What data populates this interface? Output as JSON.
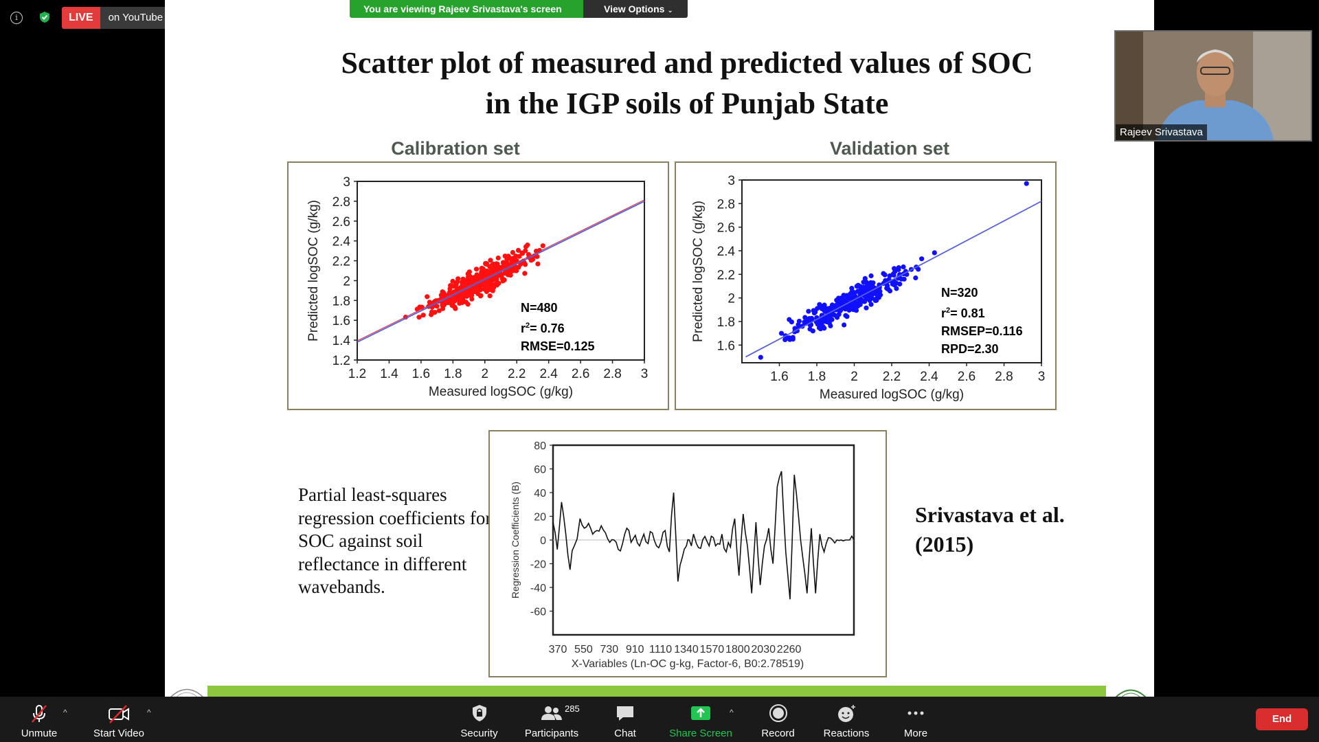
{
  "meeting": {
    "live_label": "LIVE",
    "stream_target": "on YouTube",
    "share_banner": "You are viewing Rajeev Srivastava's screen",
    "view_options": "View Options"
  },
  "slide": {
    "title_line1": "Scatter plot of measured and predicted values of SOC",
    "title_line2": "in the IGP soils of Punjab State",
    "description": "Partial least-squares regression coefficients for SOC against soil reflectance in different wavebands.",
    "citation_line1": "Srivastava et al.",
    "citation_line2": "(2015)"
  },
  "chart_data": [
    {
      "type": "scatter",
      "title": "Calibration set",
      "xlabel": "Measured logSOC (g/kg)",
      "ylabel": "Predicted logSOC (g/kg)",
      "xlim": [
        1.2,
        3.0
      ],
      "ylim": [
        1.2,
        3.0
      ],
      "xticks": [
        "1.2",
        "1.4",
        "1.6",
        "1.8",
        "2",
        "2.2",
        "2.4",
        "2.6",
        "2.8",
        "3"
      ],
      "yticks": [
        "1.2",
        "1.4",
        "1.6",
        "1.8",
        "2",
        "2.2",
        "2.4",
        "2.6",
        "2.8",
        "3"
      ],
      "color": "#ff1010",
      "n_points": 480,
      "fit_line": [
        [
          1.2,
          1.38
        ],
        [
          3.0,
          2.8
        ]
      ],
      "stats": [
        "N=480",
        "r2= 0.76",
        "RMSE=0.125"
      ]
    },
    {
      "type": "scatter",
      "title": "Validation set",
      "xlabel": "Measured logSOC (g/kg)",
      "ylabel": "Predicted logSOC (g/kg)",
      "xlim": [
        1.4,
        3.0
      ],
      "ylim": [
        1.45,
        3.0
      ],
      "xticks": [
        "1.6",
        "1.8",
        "2",
        "2.2",
        "2.4",
        "2.6",
        "2.8",
        "3"
      ],
      "yticks": [
        "1.6",
        "1.8",
        "2",
        "2.2",
        "2.4",
        "2.6",
        "2.8",
        "3"
      ],
      "color": "#1010ff",
      "n_points": 320,
      "fit_line": [
        [
          1.42,
          1.5
        ],
        [
          3.0,
          2.82
        ]
      ],
      "stats": [
        "N=320",
        "r2= 0.81",
        "RMSEP=0.116",
        "RPD=2.30"
      ]
    },
    {
      "type": "line",
      "xlabel": "X-Variables (Ln-OC g-kg, Factor-6, B0:2.78519)",
      "ylabel": "Regression Coefficients (B)",
      "xlim": [
        370,
        2490
      ],
      "ylim": [
        -80,
        80
      ],
      "xticks": [
        "370",
        "550",
        "730",
        "910",
        "1110",
        "1340",
        "1570",
        "1800",
        "2030",
        "2260"
      ],
      "yticks": [
        "80",
        "60",
        "40",
        "20",
        "0",
        "-20",
        "-40",
        "-60"
      ],
      "series": [
        {
          "x": [
            370,
            400,
            430,
            460,
            490,
            520,
            560,
            590,
            620,
            650,
            680,
            710,
            740,
            770,
            800,
            830,
            860,
            890,
            920,
            950,
            980,
            1010,
            1040,
            1070,
            1100,
            1130,
            1160,
            1190,
            1220,
            1250,
            1280,
            1310,
            1330,
            1345,
            1360,
            1380,
            1410,
            1440,
            1470,
            1500,
            1530,
            1560,
            1590,
            1620,
            1650,
            1680,
            1710,
            1740,
            1770,
            1800,
            1830,
            1860,
            1890,
            1920,
            1950,
            1980,
            2010,
            2040,
            2070,
            2100,
            2130,
            2160,
            2190,
            2220,
            2250,
            2280,
            2310,
            2340,
            2370,
            2400,
            2430,
            2460,
            2490
          ],
          "values": [
            15,
            -8,
            32,
            5,
            -25,
            -5,
            18,
            10,
            14,
            5,
            8,
            12,
            6,
            -2,
            0,
            -8,
            -3,
            10,
            -2,
            4,
            -5,
            5,
            -3,
            6,
            -5,
            -2,
            8,
            -10,
            40,
            -35,
            -15,
            -5,
            0,
            -5,
            5,
            -3,
            -7,
            3,
            -5,
            2,
            -3,
            5,
            -10,
            -6,
            18,
            -30,
            22,
            -5,
            -45,
            15,
            -38,
            -5,
            10,
            -20,
            45,
            58,
            -10,
            -50,
            55,
            20,
            -15,
            -45,
            10,
            -45,
            5,
            -10,
            2,
            0,
            0,
            0,
            0,
            0,
            0
          ]
        }
      ]
    }
  ],
  "video_tile": {
    "participant_name": "Rajeev Srivastava"
  },
  "toolbar": {
    "unmute": "Unmute",
    "start_video": "Start Video",
    "security": "Security",
    "participants": "Participants",
    "participant_count": "285",
    "chat": "Chat",
    "share_screen": "Share Screen",
    "record": "Record",
    "reactions": "Reactions",
    "more": "More",
    "end": "End"
  }
}
